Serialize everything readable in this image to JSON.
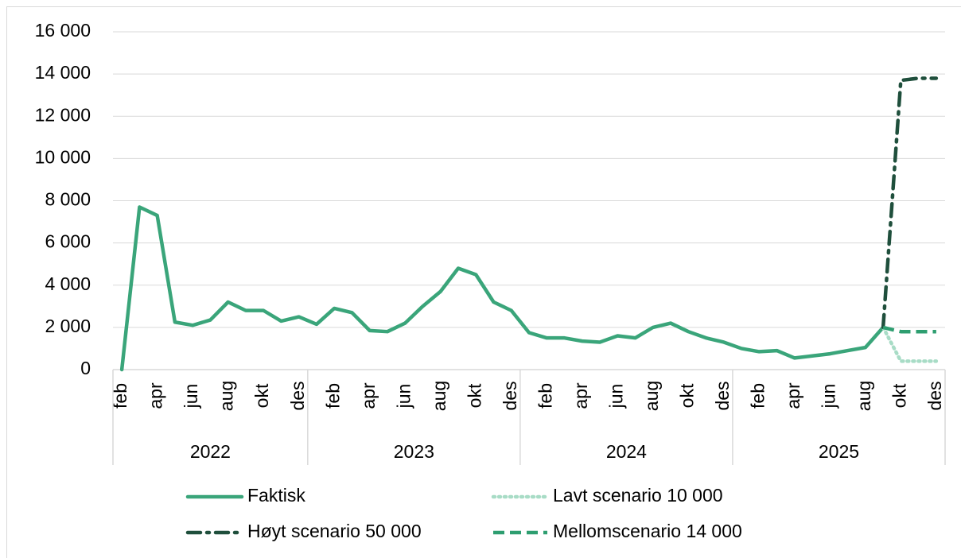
{
  "chart_data": {
    "type": "line",
    "categories": [
      "feb",
      null,
      "apr",
      null,
      "jun",
      null,
      "aug",
      null,
      "okt",
      null,
      "des",
      null,
      "feb",
      null,
      "apr",
      null,
      "jun",
      null,
      "aug",
      null,
      "okt",
      null,
      "des",
      null,
      "feb",
      null,
      "apr",
      null,
      "jun",
      null,
      "aug",
      null,
      "okt",
      null,
      "des",
      null,
      "feb",
      null,
      "apr",
      null,
      "jun",
      null,
      "aug",
      null,
      "okt",
      null,
      "des"
    ],
    "year_groups": [
      "2022",
      "2023",
      "2024",
      "2025"
    ],
    "series": [
      {
        "name": "Faktisk",
        "color": "#3aa57a",
        "dash": "solid",
        "values": [
          0,
          7700,
          7300,
          2250,
          2100,
          2350,
          3200,
          2800,
          2800,
          2300,
          2500,
          2150,
          2900,
          2700,
          1850,
          1800,
          2200,
          3000,
          3700,
          4800,
          4500,
          3200,
          2800,
          1750,
          1500,
          1500,
          1350,
          1300,
          1600,
          1500,
          2000,
          2200,
          1800,
          1500,
          1300,
          1000,
          850,
          900,
          550,
          650,
          750,
          900,
          1050,
          2000,
          null,
          null,
          null
        ]
      },
      {
        "name": "Lavt scenario 10 000",
        "color": "#a8dcc6",
        "dash": "dotted",
        "values": [
          null,
          null,
          null,
          null,
          null,
          null,
          null,
          null,
          null,
          null,
          null,
          null,
          null,
          null,
          null,
          null,
          null,
          null,
          null,
          null,
          null,
          null,
          null,
          null,
          null,
          null,
          null,
          null,
          null,
          null,
          null,
          null,
          null,
          null,
          null,
          null,
          null,
          null,
          null,
          null,
          null,
          null,
          null,
          2000,
          400,
          400,
          400
        ]
      },
      {
        "name": "Høyt scenario 50 000",
        "color": "#1f4f3c",
        "dash": "dashdot",
        "values": [
          null,
          null,
          null,
          null,
          null,
          null,
          null,
          null,
          null,
          null,
          null,
          null,
          null,
          null,
          null,
          null,
          null,
          null,
          null,
          null,
          null,
          null,
          null,
          null,
          null,
          null,
          null,
          null,
          null,
          null,
          null,
          null,
          null,
          null,
          null,
          null,
          null,
          null,
          null,
          null,
          null,
          null,
          null,
          2000,
          13700,
          13800,
          13800
        ]
      },
      {
        "name": "Mellomscenario 14 000",
        "color": "#2e9e70",
        "dash": "dashed",
        "values": [
          null,
          null,
          null,
          null,
          null,
          null,
          null,
          null,
          null,
          null,
          null,
          null,
          null,
          null,
          null,
          null,
          null,
          null,
          null,
          null,
          null,
          null,
          null,
          null,
          null,
          null,
          null,
          null,
          null,
          null,
          null,
          null,
          null,
          null,
          null,
          null,
          null,
          null,
          null,
          null,
          null,
          null,
          null,
          2000,
          1800,
          1800,
          1800
        ]
      }
    ],
    "ylim": [
      0,
      16000
    ],
    "yticks": [
      0,
      {
        "value": 2000,
        "label": "2 000"
      },
      {
        "value": 4000,
        "label": "4 000"
      },
      {
        "value": 6000,
        "label": "6 000"
      },
      {
        "value": 8000,
        "label": "8 000"
      },
      {
        "value": 10000,
        "label": "10 000"
      },
      {
        "value": 12000,
        "label": "12 000"
      },
      {
        "value": 14000,
        "label": "14 000"
      },
      {
        "value": 16000,
        "label": "16 000"
      }
    ],
    "grid": true
  }
}
